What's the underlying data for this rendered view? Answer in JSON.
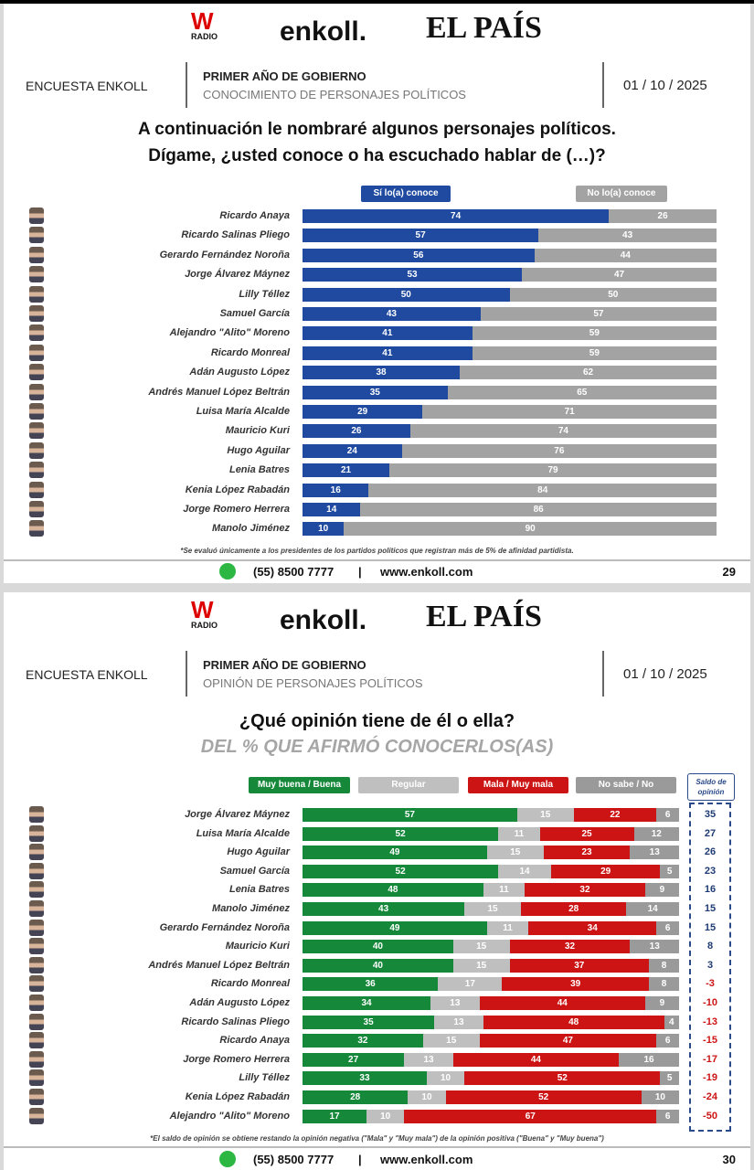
{
  "brand": {
    "radio": "W",
    "radio_sub": "RADIO",
    "enkoll": "enkoll.",
    "pais": "EL PAÍS",
    "watermark": "enkoll."
  },
  "pages": [
    {
      "survey": "ENCUESTA ENKOLL",
      "section": "PRIMER AÑO DE GOBIERNO",
      "topic": "CONOCIMIENTO DE PERSONAJES POLÍTICOS",
      "date": "01 / 10 / 2025",
      "question_line1": "A continuación le nombraré algunos personajes políticos.",
      "question_line2": "Dígame, ¿usted conoce o ha escuchado hablar de (…)?",
      "note": "*Se evaluó únicamente a los presidentes de los partidos políticos que registran más de 5% de afinidad partidista.",
      "phone": "(55) 8500 7777",
      "sep": "|",
      "web": "www.enkoll.com",
      "page_number": "29"
    },
    {
      "survey": "ENCUESTA ENKOLL",
      "section": "PRIMER AÑO DE GOBIERNO",
      "topic": "OPINIÓN DE PERSONAJES POLÍTICOS",
      "date": "01 / 10 / 2025",
      "question_line1": "¿Qué opinión tiene de él o ella?",
      "subtitle": "DEL % QUE AFIRMÓ CONOCERLOS(AS)",
      "note": "*El saldo de opinión se obtiene restando la opinión negativa (\"Mala\" y \"Muy mala\") de la opinión positiva (\"Buena\" y \"Muy buena\")",
      "phone": "(55) 8500 7777",
      "sep": "|",
      "web": "www.enkoll.com",
      "page_number": "30",
      "saldo_header": "Saldo de opinión"
    }
  ],
  "chart_data": [
    {
      "type": "bar",
      "stacked": true,
      "orientation": "horizontal",
      "title": "Conocimiento de personajes políticos",
      "xlim": [
        0,
        100
      ],
      "categories": [
        "Ricardo Anaya",
        "Ricardo Salinas Pliego",
        "Gerardo Fernández Noroña",
        "Jorge Álvarez Máynez",
        "Lilly Téllez",
        "Samuel García",
        "Alejandro \"Alito\" Moreno",
        "Ricardo Monreal",
        "Adán Augusto López",
        "Andrés Manuel López Beltrán",
        "Luisa María Alcalde",
        "Mauricio Kuri",
        "Hugo Aguilar",
        "Lenia Batres",
        "Kenia López Rabadán",
        "Jorge Romero Herrera",
        "Manolo Jiménez"
      ],
      "series": [
        {
          "name": "Sí lo(a) conoce",
          "color": "#1f4aa0",
          "values": [
            74,
            57,
            56,
            53,
            50,
            43,
            41,
            41,
            38,
            35,
            29,
            26,
            24,
            21,
            16,
            14,
            10
          ]
        },
        {
          "name": "No lo(a) conoce",
          "color": "#a3a3a3",
          "values": [
            26,
            43,
            44,
            47,
            50,
            57,
            59,
            59,
            62,
            65,
            71,
            74,
            76,
            79,
            84,
            86,
            90
          ]
        }
      ],
      "legend": "top"
    },
    {
      "type": "bar",
      "stacked": true,
      "orientation": "horizontal",
      "title": "Opinión de personajes políticos",
      "xlim": [
        0,
        100
      ],
      "categories": [
        "Jorge Álvarez Máynez",
        "Luisa María Alcalde",
        "Hugo Aguilar",
        "Samuel García",
        "Lenia Batres",
        "Manolo Jiménez",
        "Gerardo Fernández Noroña",
        "Mauricio Kuri",
        "Andrés Manuel López Beltrán",
        "Ricardo Monreal",
        "Adán Augusto López",
        "Ricardo Salinas Pliego",
        "Ricardo Anaya",
        "Jorge Romero Herrera",
        "Lilly Téllez",
        "Kenia López Rabadán",
        "Alejandro \"Alito\" Moreno"
      ],
      "series": [
        {
          "name": "Muy buena / Buena",
          "color": "#16883a",
          "values": [
            57,
            52,
            49,
            52,
            48,
            43,
            49,
            40,
            40,
            36,
            34,
            35,
            32,
            27,
            33,
            28,
            17
          ]
        },
        {
          "name": "Regular",
          "color": "#bfbfbf",
          "values": [
            15,
            11,
            15,
            14,
            11,
            15,
            11,
            15,
            15,
            17,
            13,
            13,
            15,
            13,
            10,
            10,
            10
          ]
        },
        {
          "name": "Mala / Muy mala",
          "color": "#cc1414",
          "values": [
            22,
            25,
            23,
            29,
            32,
            28,
            34,
            32,
            37,
            39,
            44,
            48,
            47,
            44,
            52,
            52,
            67
          ]
        },
        {
          "name": "No sabe / No respondió",
          "color": "#9a9a9a",
          "values": [
            6,
            12,
            13,
            5,
            9,
            14,
            6,
            13,
            8,
            8,
            9,
            4,
            6,
            16,
            5,
            10,
            6
          ]
        }
      ],
      "saldo": [
        35,
        27,
        26,
        23,
        16,
        15,
        15,
        8,
        3,
        -3,
        -10,
        -13,
        -15,
        -17,
        -19,
        -24,
        -50
      ],
      "legend": "top"
    }
  ]
}
